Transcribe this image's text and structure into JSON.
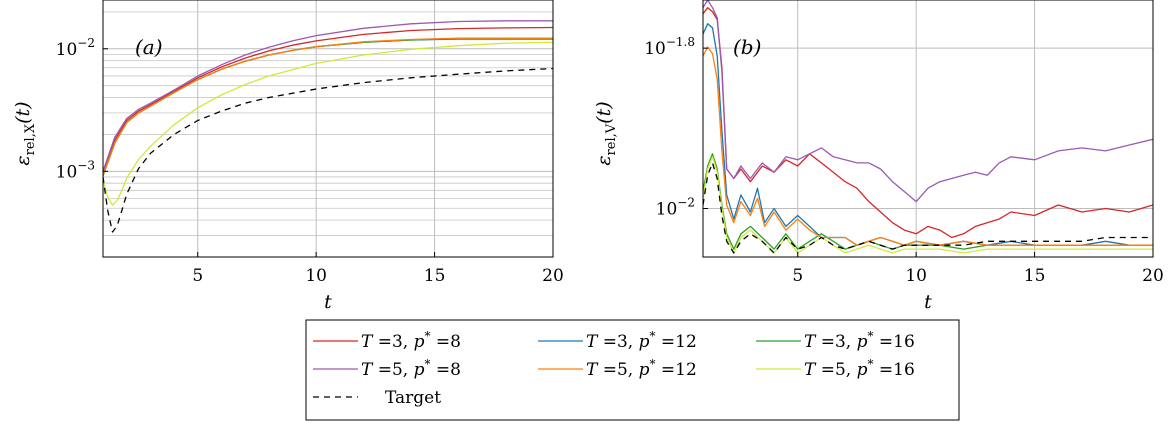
{
  "chart_data": [
    {
      "type": "line",
      "panel_label": "(a)",
      "xlabel": "t",
      "ylabel": "ε_rel,X(t)",
      "ylabel_main": "ε",
      "ylabel_sub": "rel,X",
      "ylabel_tail": "(t)",
      "yscale": "log",
      "xlim": [
        1,
        20
      ],
      "ylim": [
        0.0002,
        0.025
      ],
      "x_ticks": [
        5,
        10,
        15,
        20
      ],
      "x_tick_labels": [
        "5",
        "10",
        "15",
        "20"
      ],
      "y_ticks": [
        0.001,
        0.01
      ],
      "y_tick_labels": [
        "10^-3",
        "10^-2"
      ],
      "grid": true,
      "series": [
        {
          "name": "T =3, p* =8",
          "color": "#d62728",
          "dash": "",
          "x": [
            1,
            1.5,
            2,
            2.5,
            3,
            4,
            5,
            6,
            7,
            8,
            9,
            10,
            12,
            14,
            16,
            18,
            20
          ],
          "y": [
            0.00095,
            0.0018,
            0.0026,
            0.0031,
            0.0035,
            0.0045,
            0.0058,
            0.0071,
            0.0084,
            0.0096,
            0.0107,
            0.0116,
            0.0131,
            0.0141,
            0.0146,
            0.0148,
            0.0149
          ]
        },
        {
          "name": "T =3, p* =12",
          "color": "#1f77b4",
          "dash": "",
          "x": [
            1,
            1.5,
            2,
            2.5,
            3,
            4,
            5,
            6,
            7,
            8,
            9,
            10,
            12,
            14,
            16,
            18,
            20
          ],
          "y": [
            0.00092,
            0.0017,
            0.0025,
            0.003,
            0.0034,
            0.0044,
            0.0056,
            0.0068,
            0.0079,
            0.0089,
            0.0097,
            0.0104,
            0.0113,
            0.0118,
            0.012,
            0.012,
            0.012
          ]
        },
        {
          "name": "T =3, p* =16",
          "color": "#2ca02c",
          "dash": "",
          "x": [
            1,
            1.5,
            2,
            2.5,
            3,
            4,
            5,
            6,
            7,
            8,
            9,
            10,
            12,
            14,
            16,
            18,
            20
          ],
          "y": [
            0.00092,
            0.0017,
            0.0025,
            0.003,
            0.0034,
            0.0044,
            0.0056,
            0.0068,
            0.0079,
            0.0089,
            0.0097,
            0.0104,
            0.0113,
            0.0118,
            0.0121,
            0.0121,
            0.0121
          ]
        },
        {
          "name": "T =5, p* =8",
          "color": "#9b59b6",
          "dash": "",
          "x": [
            1,
            1.5,
            2,
            2.5,
            3,
            4,
            5,
            6,
            7,
            8,
            9,
            10,
            12,
            14,
            16,
            18,
            20
          ],
          "y": [
            0.001,
            0.0019,
            0.0027,
            0.0032,
            0.0036,
            0.0046,
            0.006,
            0.0074,
            0.0089,
            0.0103,
            0.0116,
            0.0128,
            0.0147,
            0.016,
            0.0167,
            0.0169,
            0.0169
          ]
        },
        {
          "name": "T =5, p* =12",
          "color": "#ff7f0e",
          "dash": "",
          "x": [
            1,
            1.5,
            2,
            2.5,
            3,
            4,
            5,
            6,
            7,
            8,
            9,
            10,
            12,
            14,
            16,
            18,
            20
          ],
          "y": [
            0.00093,
            0.0017,
            0.0025,
            0.003,
            0.0034,
            0.0044,
            0.0056,
            0.0068,
            0.0079,
            0.0089,
            0.0097,
            0.0104,
            0.0114,
            0.0119,
            0.0122,
            0.0122,
            0.0122
          ]
        },
        {
          "name": "T =5, p* =16",
          "color": "#d4e83a",
          "dash": "",
          "x": [
            1,
            1.2,
            1.4,
            1.6,
            1.8,
            2,
            2.5,
            3,
            4,
            5,
            6,
            7,
            8,
            10,
            12,
            14,
            16,
            18,
            20
          ],
          "y": [
            0.00085,
            0.00062,
            0.00053,
            0.00058,
            0.0007,
            0.00088,
            0.00125,
            0.0016,
            0.0024,
            0.0033,
            0.0042,
            0.0051,
            0.006,
            0.0076,
            0.0089,
            0.0099,
            0.0106,
            0.0111,
            0.0113
          ]
        },
        {
          "name": "Target",
          "color": "#000000",
          "dash": "6,5",
          "x": [
            1,
            1.2,
            1.4,
            1.6,
            1.8,
            2,
            2.5,
            3,
            4,
            5,
            6,
            7,
            8,
            10,
            12,
            14,
            16,
            18,
            20
          ],
          "y": [
            0.0009,
            0.00048,
            0.00032,
            0.00036,
            0.00048,
            0.00065,
            0.00105,
            0.0014,
            0.002,
            0.0026,
            0.0031,
            0.0036,
            0.004,
            0.0047,
            0.0053,
            0.0058,
            0.0062,
            0.0066,
            0.0069
          ]
        }
      ]
    },
    {
      "type": "line",
      "panel_label": "(b)",
      "xlabel": "t",
      "ylabel": "ε_rel,V(t)",
      "ylabel_main": "ε",
      "ylabel_sub": "rel,V",
      "ylabel_tail": "(t)",
      "yscale": "log",
      "xlim": [
        1,
        20
      ],
      "ylim": [
        0.0087,
        0.0182
      ],
      "x_ticks": [
        5,
        10,
        15,
        20
      ],
      "x_tick_labels": [
        "5",
        "10",
        "15",
        "20"
      ],
      "y_ticks": [
        0.01,
        0.015849
      ],
      "y_tick_labels": [
        "10^-2",
        "10^-1.8"
      ],
      "grid": true,
      "series": [
        {
          "name": "T =3, p* =8",
          "color": "#d62728",
          "dash": "",
          "x": [
            1,
            1.2,
            1.4,
            1.6,
            1.8,
            2,
            2.3,
            2.6,
            3,
            3.5,
            4,
            4.5,
            5,
            5.5,
            6,
            6.5,
            7,
            7.5,
            8,
            8.5,
            9,
            9.5,
            10,
            10.5,
            11,
            11.5,
            12,
            12.5,
            13,
            13.5,
            14,
            15,
            16,
            17,
            18,
            19,
            20
          ],
          "y": [
            0.0175,
            0.0178,
            0.0176,
            0.0172,
            0.015,
            0.0112,
            0.0109,
            0.0112,
            0.0108,
            0.0113,
            0.0111,
            0.0115,
            0.0113,
            0.0117,
            0.0114,
            0.0111,
            0.0108,
            0.0106,
            0.0102,
            0.0099,
            0.0096,
            0.0094,
            0.0093,
            0.0095,
            0.0094,
            0.0092,
            0.0093,
            0.0095,
            0.0096,
            0.0097,
            0.0099,
            0.0098,
            0.0101,
            0.0099,
            0.01,
            0.0099,
            0.0101
          ]
        },
        {
          "name": "T =3, p* =12",
          "color": "#1f77b4",
          "dash": "",
          "x": [
            1,
            1.2,
            1.4,
            1.6,
            1.8,
            2,
            2.3,
            2.6,
            3,
            3.3,
            3.6,
            4,
            4.5,
            5,
            5.5,
            6,
            6.5,
            7,
            7.5,
            8,
            8.5,
            9,
            9.5,
            10,
            11,
            12,
            13,
            14,
            15,
            16,
            17,
            18,
            19,
            20
          ],
          "y": [
            0.0165,
            0.017,
            0.0168,
            0.0155,
            0.0125,
            0.0104,
            0.0097,
            0.0104,
            0.0099,
            0.0106,
            0.0096,
            0.01,
            0.0095,
            0.0098,
            0.0095,
            0.0092,
            0.0092,
            0.0092,
            0.009,
            0.0091,
            0.0092,
            0.0091,
            0.009,
            0.0091,
            0.009,
            0.0091,
            0.009,
            0.0091,
            0.009,
            0.009,
            0.009,
            0.0091,
            0.009,
            0.009
          ]
        },
        {
          "name": "T =3, p* =16",
          "color": "#2ca02c",
          "dash": "",
          "x": [
            1,
            1.2,
            1.4,
            1.6,
            1.8,
            2,
            2.3,
            2.6,
            3,
            3.5,
            4,
            4.5,
            5,
            5.5,
            6,
            6.5,
            7,
            7.5,
            8,
            8.5,
            9,
            9.5,
            10,
            11,
            12,
            13,
            14,
            15,
            16,
            17,
            18,
            19,
            20
          ],
          "y": [
            0.0105,
            0.0113,
            0.0117,
            0.0112,
            0.0101,
            0.0093,
            0.0089,
            0.0093,
            0.0095,
            0.0092,
            0.0089,
            0.0093,
            0.0089,
            0.0091,
            0.0093,
            0.0091,
            0.0089,
            0.009,
            0.0091,
            0.009,
            0.0089,
            0.009,
            0.009,
            0.009,
            0.0089,
            0.009,
            0.009,
            0.009,
            0.009,
            0.009,
            0.009,
            0.009,
            0.009
          ]
        },
        {
          "name": "T =5, p* =8",
          "color": "#9b59b6",
          "dash": "",
          "x": [
            1,
            1.2,
            1.4,
            1.6,
            1.8,
            2,
            2.3,
            2.6,
            3,
            3.5,
            4,
            4.5,
            5,
            5.5,
            6,
            6.5,
            7,
            7.5,
            8,
            8.5,
            9,
            9.5,
            10,
            10.5,
            11,
            11.5,
            12,
            12.5,
            13,
            13.5,
            14,
            15,
            16,
            17,
            18,
            19,
            20
          ],
          "y": [
            0.0178,
            0.0182,
            0.0178,
            0.0173,
            0.0148,
            0.0112,
            0.0109,
            0.0113,
            0.0109,
            0.0114,
            0.0111,
            0.0116,
            0.0115,
            0.0117,
            0.0119,
            0.0116,
            0.0115,
            0.0114,
            0.0114,
            0.0112,
            0.0108,
            0.0105,
            0.0102,
            0.0106,
            0.0108,
            0.0109,
            0.011,
            0.0111,
            0.011,
            0.0114,
            0.0116,
            0.0115,
            0.0118,
            0.0119,
            0.0118,
            0.012,
            0.0122
          ]
        },
        {
          "name": "T =5, p* =12",
          "color": "#ff7f0e",
          "dash": "",
          "x": [
            1,
            1.2,
            1.4,
            1.6,
            1.8,
            2,
            2.3,
            2.6,
            3,
            3.3,
            3.6,
            4,
            4.5,
            5,
            5.5,
            6,
            6.5,
            7,
            7.5,
            8,
            8.5,
            9,
            9.5,
            10,
            11,
            12,
            13,
            14,
            15,
            16,
            17,
            18,
            19,
            20
          ],
          "y": [
            0.0155,
            0.0159,
            0.0156,
            0.0145,
            0.0118,
            0.0101,
            0.0096,
            0.0102,
            0.0098,
            0.0103,
            0.0095,
            0.0099,
            0.0094,
            0.0097,
            0.0094,
            0.0092,
            0.0092,
            0.0092,
            0.009,
            0.0091,
            0.0092,
            0.0091,
            0.009,
            0.0091,
            0.009,
            0.0091,
            0.009,
            0.009,
            0.009,
            0.009,
            0.009,
            0.009,
            0.009,
            0.009
          ]
        },
        {
          "name": "T =5, p* =16",
          "color": "#d4e83a",
          "dash": "",
          "x": [
            1,
            1.2,
            1.4,
            1.6,
            1.8,
            2,
            2.3,
            2.6,
            3,
            3.5,
            4,
            4.5,
            5,
            5.5,
            6,
            6.5,
            7,
            7.5,
            8,
            8.5,
            9,
            9.5,
            10,
            11,
            12,
            13,
            14,
            15,
            16,
            17,
            18,
            19,
            20
          ],
          "y": [
            0.0103,
            0.0112,
            0.0116,
            0.0111,
            0.01,
            0.0092,
            0.0088,
            0.0092,
            0.0094,
            0.0091,
            0.0088,
            0.0092,
            0.0088,
            0.009,
            0.0092,
            0.009,
            0.0088,
            0.0089,
            0.009,
            0.0089,
            0.0088,
            0.0089,
            0.0089,
            0.0089,
            0.0088,
            0.0089,
            0.0089,
            0.0089,
            0.0089,
            0.0089,
            0.0089,
            0.0089,
            0.0089
          ]
        },
        {
          "name": "Target",
          "color": "#000000",
          "dash": "6,5",
          "x": [
            1,
            1.2,
            1.4,
            1.6,
            1.8,
            2,
            2.3,
            2.6,
            3,
            3.5,
            4,
            4.5,
            5,
            5.5,
            6,
            6.5,
            7,
            7.5,
            8,
            8.5,
            9,
            9.5,
            10,
            11,
            12,
            13,
            14,
            15,
            16,
            17,
            18,
            19,
            20
          ],
          "y": [
            0.0101,
            0.011,
            0.0114,
            0.0109,
            0.0098,
            0.0091,
            0.0088,
            0.0091,
            0.0093,
            0.0091,
            0.0088,
            0.0092,
            0.0089,
            0.009,
            0.0092,
            0.009,
            0.0089,
            0.009,
            0.0091,
            0.009,
            0.0089,
            0.009,
            0.009,
            0.009,
            0.009,
            0.0091,
            0.0091,
            0.0091,
            0.0091,
            0.0091,
            0.0092,
            0.0092,
            0.0092
          ]
        }
      ]
    }
  ],
  "legend": {
    "placement": "bottom-center",
    "entries": [
      {
        "var": "T",
        "eq1": " =3, ",
        "pvar": "p",
        "star": "*",
        "eq2": " =8",
        "color": "#d62728",
        "dash": ""
      },
      {
        "var": "T",
        "eq1": " =3, ",
        "pvar": "p",
        "star": "*",
        "eq2": " =12",
        "color": "#1f77b4",
        "dash": ""
      },
      {
        "var": "T",
        "eq1": " =3, ",
        "pvar": "p",
        "star": "*",
        "eq2": " =16",
        "color": "#2ca02c",
        "dash": ""
      },
      {
        "var": "T",
        "eq1": " =5, ",
        "pvar": "p",
        "star": "*",
        "eq2": " =8",
        "color": "#9b59b6",
        "dash": ""
      },
      {
        "var": "T",
        "eq1": " =5, ",
        "pvar": "p",
        "star": "*",
        "eq2": " =12",
        "color": "#ff7f0e",
        "dash": ""
      },
      {
        "var": "T",
        "eq1": " =5, ",
        "pvar": "p",
        "star": "*",
        "eq2": " =16",
        "color": "#d4e83a",
        "dash": ""
      },
      {
        "label": "Target",
        "color": "#000000",
        "dash": "6,5"
      }
    ]
  }
}
